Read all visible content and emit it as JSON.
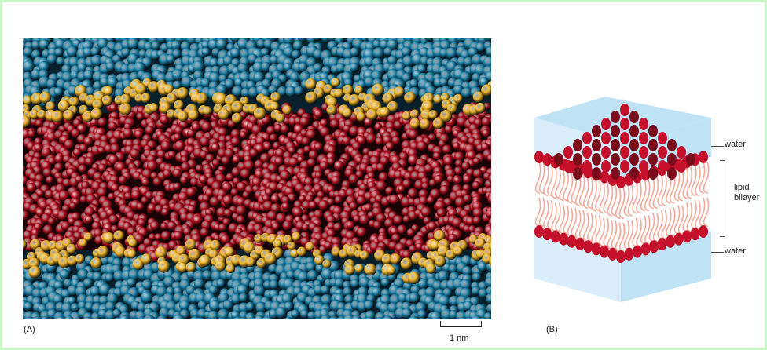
{
  "figure": {
    "panel_a_label": "(A)",
    "panel_b_label": "(B)",
    "scale_label": "1 nm",
    "water_top_label": "water",
    "water_bottom_label": "water",
    "bilayer_label_line1": "lipid",
    "bilayer_label_line2": "bilayer"
  },
  "colors": {
    "water_atoms": "#1a7fa6",
    "headgroup_atoms": "#f4b82c",
    "tail_atoms": "#b0101e",
    "block_water": "#bfe3f5",
    "block_water_side": "#d9eefa",
    "block_head": "#c4102a",
    "block_tail": "#f3a99a"
  }
}
